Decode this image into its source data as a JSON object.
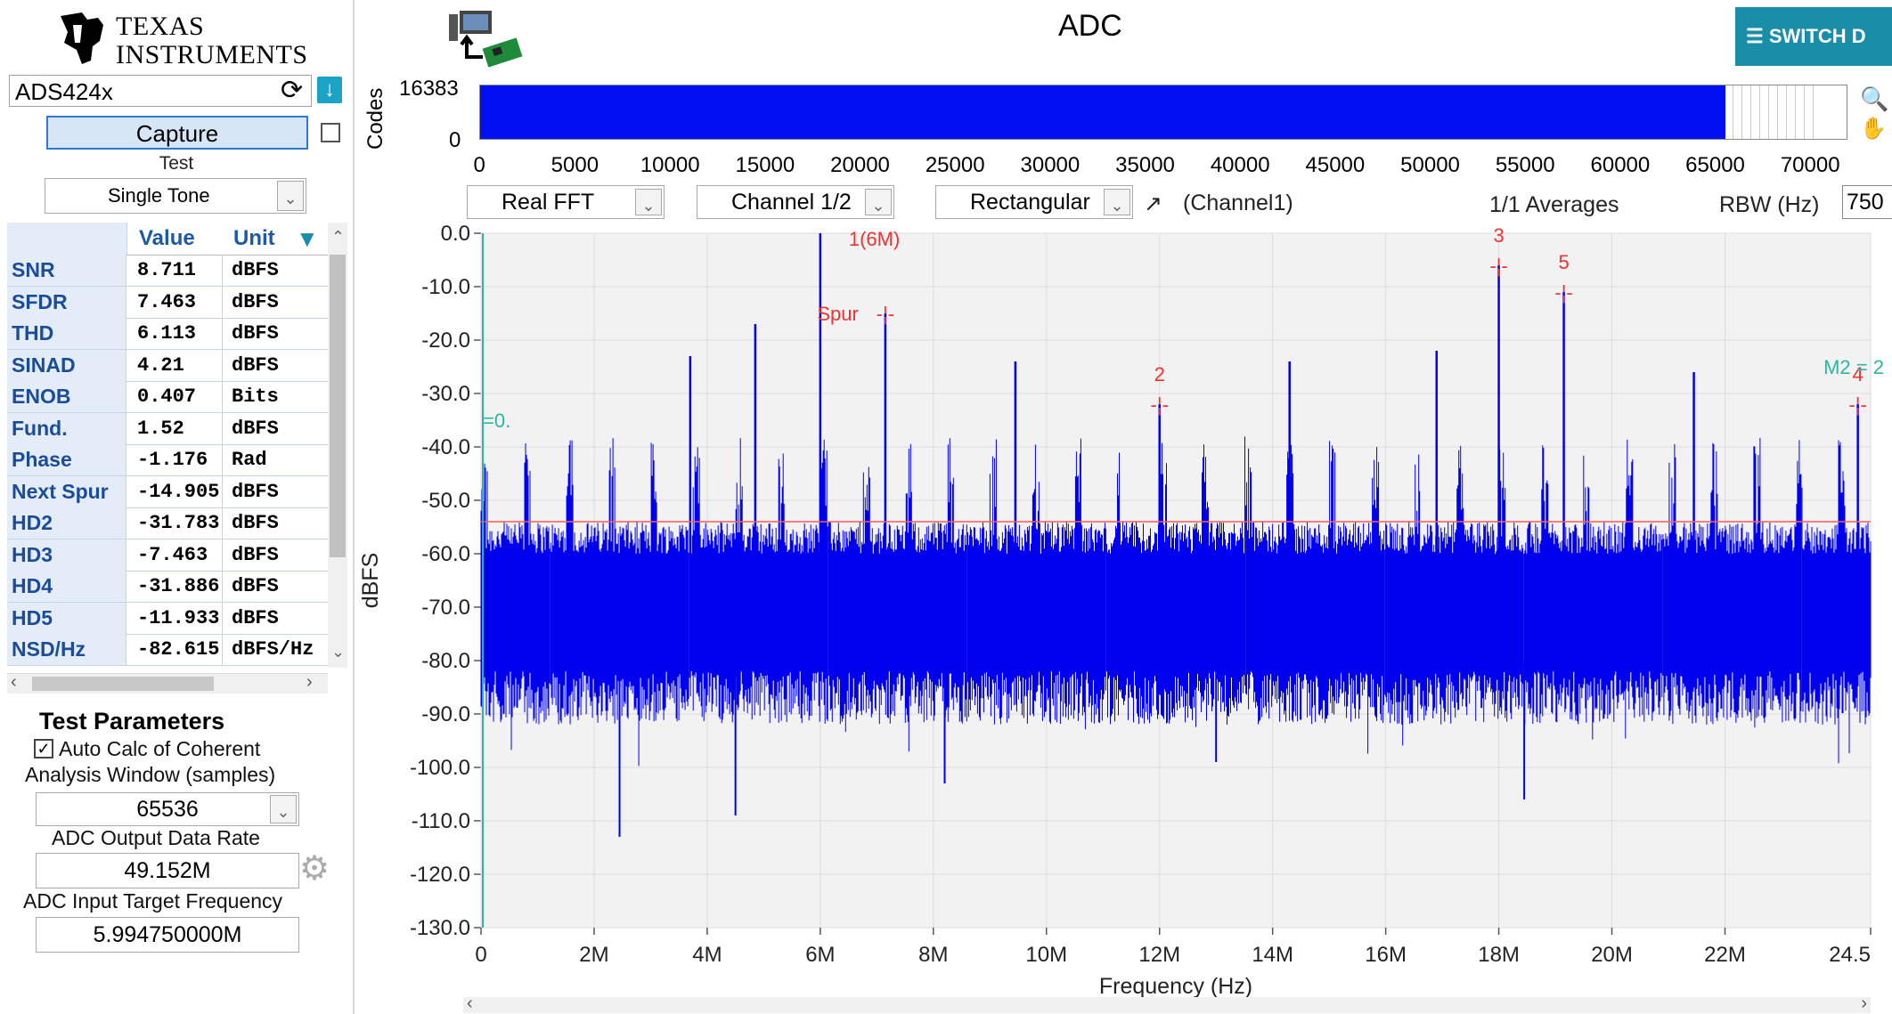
{
  "logo": {
    "line1": "Texas",
    "line2": "Instruments"
  },
  "device": {
    "name": "ADS424x"
  },
  "capture": {
    "label": "Capture"
  },
  "test": {
    "label": "Test",
    "selected": "Single Tone"
  },
  "metrics": {
    "headers": [
      "Value",
      "Unit"
    ],
    "rows": [
      {
        "name": "SNR",
        "value": "8.711",
        "unit": "dBFS"
      },
      {
        "name": "SFDR",
        "value": "7.463",
        "unit": "dBFS"
      },
      {
        "name": "THD",
        "value": "6.113",
        "unit": "dBFS"
      },
      {
        "name": "SINAD",
        "value": "4.21",
        "unit": "dBFS"
      },
      {
        "name": "ENOB",
        "value": "0.407",
        "unit": "Bits"
      },
      {
        "name": "Fund.",
        "value": "1.52",
        "unit": "dBFS"
      },
      {
        "name": "Phase",
        "value": "-1.176",
        "unit": "Rad"
      },
      {
        "name": "Next Spur",
        "value": "-14.905",
        "unit": "dBFS"
      },
      {
        "name": "HD2",
        "value": "-31.783",
        "unit": "dBFS"
      },
      {
        "name": "HD3",
        "value": "-7.463",
        "unit": "dBFS"
      },
      {
        "name": "HD4",
        "value": "-31.886",
        "unit": "dBFS"
      },
      {
        "name": "HD5",
        "value": "-11.933",
        "unit": "dBFS"
      },
      {
        "name": "NSD/Hz",
        "value": "-82.615",
        "unit": "dBFS/Hz"
      }
    ]
  },
  "test_params": {
    "title": "Test Parameters",
    "auto_calc_label": "Auto Calc of Coherent",
    "auto_calc_checked": true,
    "window_label": "Analysis Window (samples)",
    "window_value": "65536",
    "rate_label": "ADC Output Data Rate",
    "rate_value": "49.152M",
    "target_label": "ADC Input Target Frequency",
    "target_value": "5.994750000M"
  },
  "header": {
    "title": "ADC",
    "switch_label": "SWITCH D"
  },
  "codes_plot": {
    "ylabel": "Codes",
    "y_ticks": [
      "16383",
      "0"
    ],
    "x_ticks": [
      "0",
      "5000",
      "10000",
      "15000",
      "20000",
      "25000",
      "30000",
      "35000",
      "40000",
      "45000",
      "50000",
      "55000",
      "60000",
      "65000",
      "70000"
    ],
    "x_max": 70000,
    "fill_end": 65536
  },
  "fft_controls": {
    "mode": "Real FFT",
    "channel": "Channel 1/2",
    "window": "Rectangular",
    "channel_link": "(Channel1)",
    "averages": "1/1 Averages",
    "rbw_label": "RBW (Hz)",
    "rbw_value": "750"
  },
  "chart_data": {
    "type": "line",
    "xlabel": "Frequency (Hz)",
    "ylabel": "dBFS",
    "xlim": [
      0,
      24576000
    ],
    "ylim": [
      -130,
      0
    ],
    "x_tick_labels": [
      "0",
      "2M",
      "4M",
      "6M",
      "8M",
      "10M",
      "12M",
      "14M",
      "16M",
      "18M",
      "20M",
      "22M",
      "24.5"
    ],
    "y_tick_labels": [
      "0.0",
      "-10.0",
      "-20.0",
      "-30.0",
      "-40.0",
      "-50.0",
      "-60.0",
      "-70.0",
      "-80.0",
      "-90.0",
      "-100.0",
      "-110.0",
      "-120.0",
      "-130.0"
    ],
    "grid": true,
    "reference_line_dbfs": -54,
    "noise_band_dbfs": [
      -82,
      -60
    ],
    "spur_spacing_hz": 750000,
    "series": [
      {
        "name": "",
        "color": "#0000ee",
        "peaks": [
          {
            "x": 6000000,
            "y": 0
          },
          {
            "x": 7150000,
            "y": -15
          },
          {
            "x": 18000000,
            "y": -6
          },
          {
            "x": 19150000,
            "y": -11
          },
          {
            "x": 12000000,
            "y": -32
          },
          {
            "x": 24350000,
            "y": -32
          },
          {
            "x": 4850000,
            "y": -17
          },
          {
            "x": 3700000,
            "y": -23
          },
          {
            "x": 9450000,
            "y": -24
          },
          {
            "x": 14300000,
            "y": -24
          },
          {
            "x": 21450000,
            "y": -26
          },
          {
            "x": 16900000,
            "y": -22
          }
        ],
        "deep_dips": [
          {
            "x": 2450000,
            "y": -113
          },
          {
            "x": 4500000,
            "y": -109
          },
          {
            "x": 8200000,
            "y": -103
          },
          {
            "x": 18450000,
            "y": -106
          },
          {
            "x": 13000000,
            "y": -99
          }
        ]
      }
    ],
    "annotations": [
      {
        "text": "1(6M)",
        "x": 6000000,
        "y": 0,
        "color": "#ee3333"
      },
      {
        "text": "Spur",
        "x": 7150000,
        "y": -15,
        "color": "#ee3333"
      },
      {
        "text": "2",
        "x": 12000000,
        "y": -32,
        "color": "#ee3333"
      },
      {
        "text": "3",
        "x": 18000000,
        "y": -6,
        "color": "#ee3333"
      },
      {
        "text": "5",
        "x": 19150000,
        "y": -11,
        "color": "#ee3333"
      },
      {
        "text": "4",
        "x": 24350000,
        "y": -32,
        "color": "#ee3333"
      },
      {
        "text": "M2 = 2",
        "x": 23900000,
        "y": -25,
        "color": "#2ab8a0"
      },
      {
        "text": "=0.",
        "x": 0,
        "y": -35,
        "color": "#2ab8a0"
      }
    ]
  }
}
